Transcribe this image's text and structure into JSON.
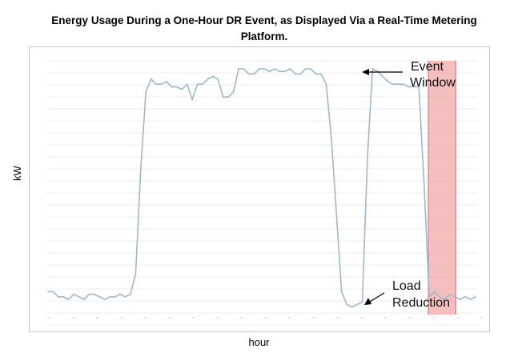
{
  "title": "Energy Usage During a One-Hour DR Event, as Displayed Via a Real-Time Metering Platform.",
  "chart_data": {
    "type": "line",
    "title": "Energy Usage During a One-Hour DR Event, as Displayed Via a Real-Time Metering Platform.",
    "xlabel": "hour",
    "ylabel": "kW",
    "ylim": [
      0,
      100
    ],
    "grid": "horizontal",
    "line_color": "#9fb8cc",
    "event_window_color": "#f2a9ab",
    "event_window": [
      74,
      79
    ],
    "series": [
      {
        "values": [
          8,
          8,
          6,
          6,
          5,
          7,
          6,
          5,
          7,
          7,
          6,
          5,
          6,
          6,
          7,
          6,
          7,
          15,
          56,
          86,
          91,
          89,
          89,
          90,
          88,
          88,
          87,
          89,
          83,
          89,
          89,
          91,
          92,
          91,
          84,
          84,
          86,
          95,
          95,
          93,
          93,
          95,
          95,
          94,
          95,
          94,
          94,
          95,
          93,
          93,
          95,
          95,
          93,
          93,
          89,
          68,
          38,
          8,
          3,
          2,
          3,
          4,
          60,
          95,
          94,
          92,
          90,
          89,
          89,
          89,
          88,
          88,
          88,
          50,
          6,
          8,
          6,
          5,
          7,
          6,
          5,
          6,
          5,
          6
        ]
      }
    ]
  },
  "annotations": {
    "event_window": "Event\nWindow",
    "load_reduction": "Load\nReduction"
  }
}
